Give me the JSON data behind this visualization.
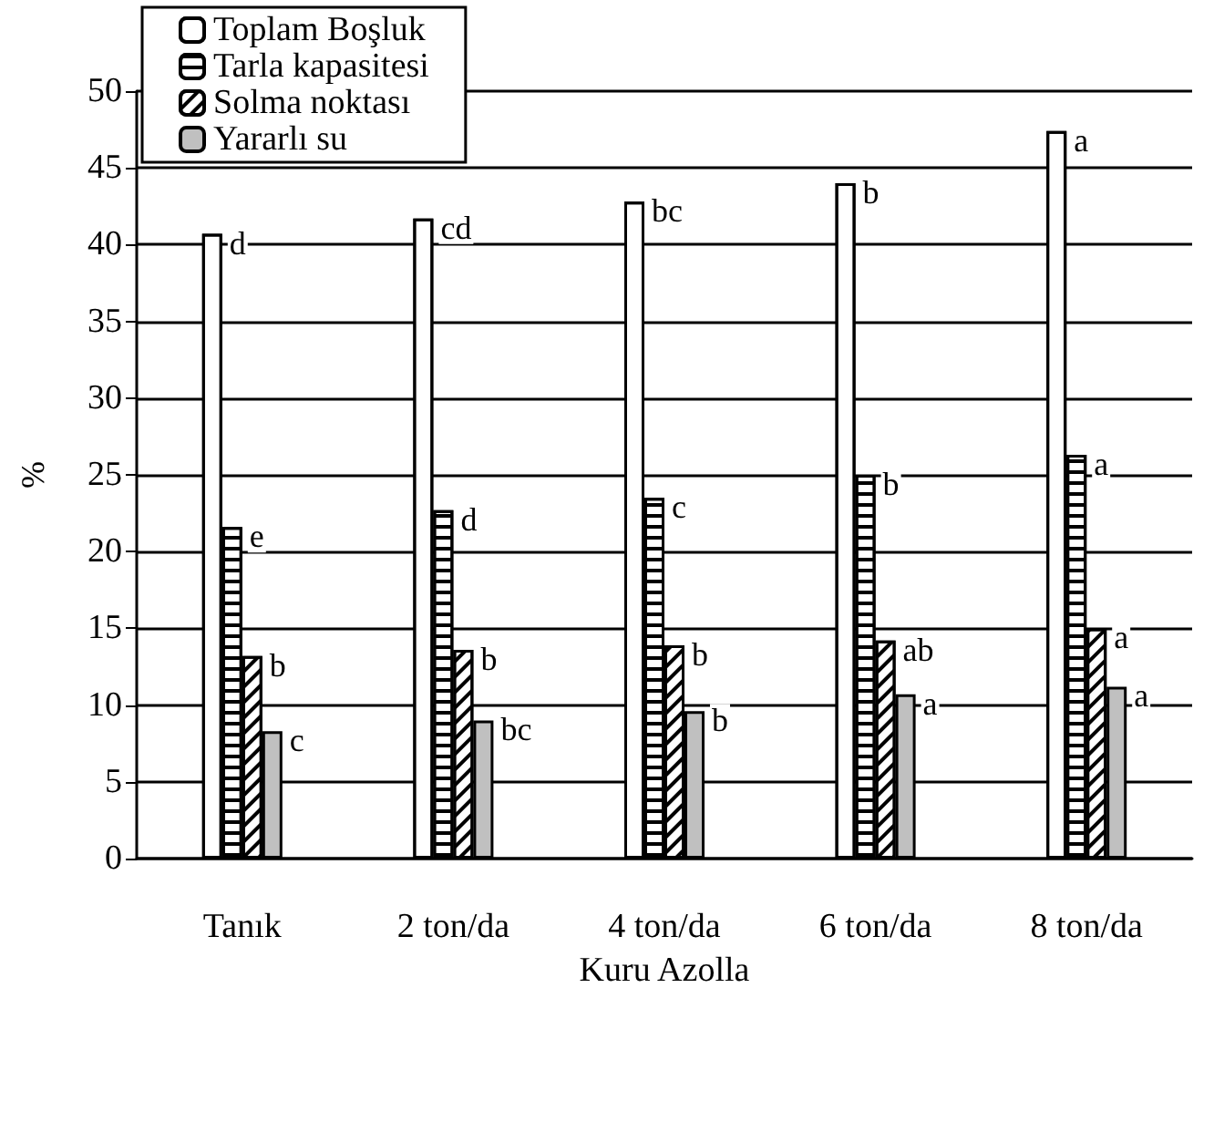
{
  "chart_data": {
    "type": "bar",
    "xlabel": "Kuru Azolla",
    "ylabel": "%",
    "categories": [
      "Tanık",
      "2 ton/da",
      "4 ton/da",
      "6 ton/da",
      "8 ton/da"
    ],
    "series": [
      {
        "name": "Toplam Boşluk",
        "color": "#ffffff",
        "values": [
          40.7,
          41.7,
          42.8,
          44.0,
          47.4
        ],
        "value_labels": [
          "d",
          "cd",
          "bc",
          "b",
          "a"
        ]
      },
      {
        "name": "Tarla kapasitesi",
        "color": "#ffffff",
        "values": [
          21.6,
          22.7,
          23.5,
          25.0,
          26.3
        ],
        "value_labels": [
          "e",
          "d",
          "c",
          "b",
          "a"
        ]
      },
      {
        "name": "Solma noktası",
        "color": "#ffffff",
        "values": [
          13.2,
          13.6,
          13.9,
          14.2,
          15.0
        ],
        "value_labels": [
          "b",
          "b",
          "b",
          "ab",
          "a"
        ]
      },
      {
        "name": "Yararlı su",
        "color": "#c0c0c0",
        "values": [
          8.3,
          9.0,
          9.6,
          10.7,
          11.2
        ],
        "value_labels": [
          "c",
          "bc",
          "b",
          "a",
          "a"
        ]
      }
    ],
    "ylim": [
      0,
      50
    ],
    "yticks": [
      0,
      5,
      10,
      15,
      20,
      25,
      30,
      35,
      40,
      45,
      50
    ],
    "grid": "y",
    "legend": "top left"
  }
}
